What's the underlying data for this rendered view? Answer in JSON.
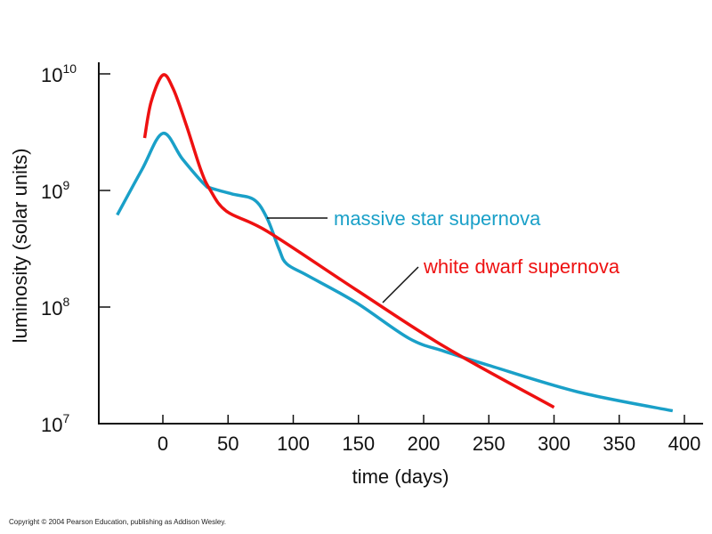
{
  "chart_data": {
    "type": "line",
    "title": "",
    "xlabel": "time (days)",
    "ylabel": "luminosity (solar units)",
    "yscale": "log",
    "xlim": [
      -48,
      410
    ],
    "ylim": [
      10000000.0,
      13000000000.0
    ],
    "xticks": [
      0,
      50,
      100,
      150,
      200,
      250,
      300,
      350,
      400
    ],
    "yticks": [
      {
        "base": "10",
        "exp": "7",
        "value": 7
      },
      {
        "base": "10",
        "exp": "8",
        "value": 8
      },
      {
        "base": "10",
        "exp": "9",
        "value": 9
      },
      {
        "base": "10",
        "exp": "10",
        "value": 10
      }
    ],
    "series": [
      {
        "name": "massive star supernova",
        "color": "#1aa0c8",
        "x": [
          -35,
          -16,
          0,
          15,
          32,
          37,
          53,
          70,
          80,
          89,
          95,
          111,
          148,
          189,
          216,
          250,
          319,
          391
        ],
        "log10_y": [
          8.79,
          9.18,
          9.49,
          9.27,
          9.05,
          9.02,
          8.97,
          8.92,
          8.76,
          8.5,
          8.37,
          8.27,
          8.04,
          7.73,
          7.62,
          7.5,
          7.27,
          7.11
        ]
      },
      {
        "name": "white dwarf supernova",
        "color": "#ee1111",
        "x": [
          -14,
          -9,
          0,
          8,
          18,
          29,
          36,
          49,
          80,
          148,
          216,
          300
        ],
        "log10_y": [
          9.45,
          9.76,
          9.99,
          9.87,
          9.56,
          9.18,
          9.01,
          8.82,
          8.65,
          8.15,
          7.66,
          7.14
        ]
      }
    ],
    "annotations": [
      "massive star supernova",
      "white dwarf supernova"
    ]
  },
  "copyright": "Copyright © 2004 Pearson Education, publishing as Addison Wesley."
}
